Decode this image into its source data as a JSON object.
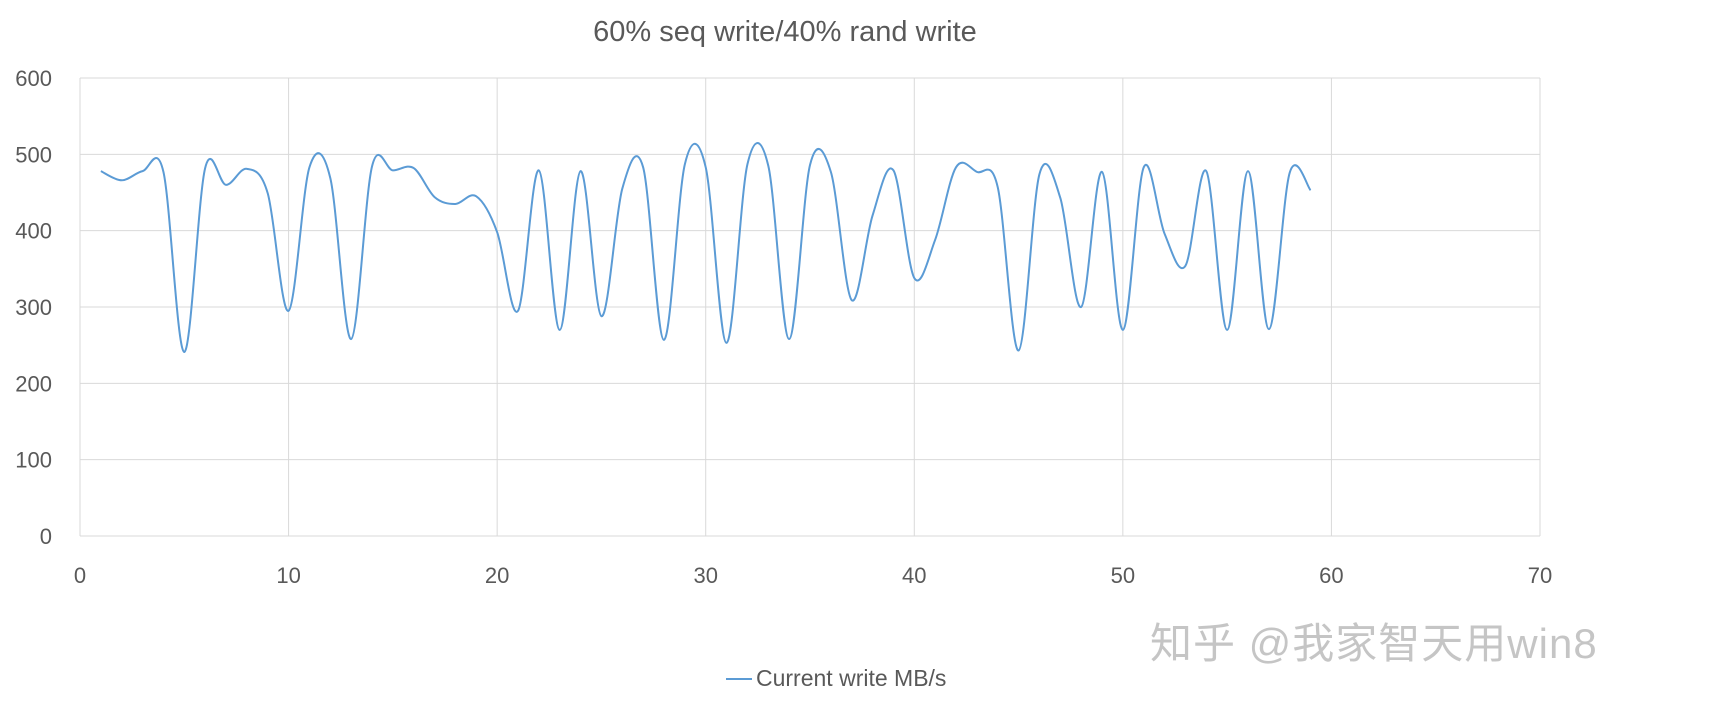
{
  "chart_data": {
    "type": "line",
    "title": "60% seq write/40% rand write",
    "xlabel": "",
    "ylabel": "",
    "xlim": [
      0,
      70
    ],
    "ylim": [
      0,
      600
    ],
    "xticks": [
      0,
      10,
      20,
      30,
      40,
      50,
      60,
      70
    ],
    "yticks": [
      0,
      100,
      200,
      300,
      400,
      500,
      600
    ],
    "grid": true,
    "smooth": true,
    "legend": "bottom",
    "series": [
      {
        "name": "Current write MB/s",
        "color": "#5b9bd5",
        "x": [
          1,
          2,
          3,
          4,
          5,
          6,
          7,
          8,
          9,
          10,
          11,
          12,
          13,
          14,
          15,
          16,
          17,
          18,
          19,
          20,
          21,
          22,
          23,
          24,
          25,
          26,
          27,
          28,
          29,
          30,
          31,
          32,
          33,
          34,
          35,
          36,
          37,
          38,
          39,
          40,
          41,
          42,
          43,
          44,
          45,
          46,
          47,
          48,
          49,
          50,
          51,
          52,
          53,
          54,
          55,
          56,
          57,
          58,
          59
        ],
        "y": [
          478,
          466,
          478,
          477,
          241,
          482,
          460,
          481,
          449,
          295,
          483,
          469,
          258,
          484,
          479,
          482,
          444,
          435,
          445,
          398,
          295,
          479,
          270,
          478,
          288,
          455,
          483,
          257,
          487,
          483,
          253,
          487,
          485,
          258,
          486,
          477,
          309,
          420,
          479,
          338,
          388,
          483,
          477,
          457,
          243,
          474,
          443,
          300,
          477,
          270,
          483,
          396,
          354,
          478,
          270,
          478,
          271,
          476,
          453
        ]
      }
    ]
  },
  "watermark": "知乎 @我家智天用win8"
}
